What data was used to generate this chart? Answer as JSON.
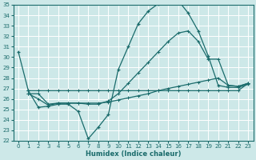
{
  "bg_color": "#cde8e8",
  "grid_color": "#ffffff",
  "line_color": "#1a6b6b",
  "xlabel": "Humidex (Indice chaleur)",
  "xlim": [
    -0.5,
    23.5
  ],
  "ylim": [
    22,
    35
  ],
  "xticks": [
    0,
    1,
    2,
    3,
    4,
    5,
    6,
    7,
    8,
    9,
    10,
    11,
    12,
    13,
    14,
    15,
    16,
    17,
    18,
    19,
    20,
    21,
    22,
    23
  ],
  "yticks": [
    22,
    23,
    24,
    25,
    26,
    27,
    28,
    29,
    30,
    31,
    32,
    33,
    34,
    35
  ],
  "line1_x": [
    0,
    1,
    2,
    3,
    4,
    5,
    6,
    7,
    8,
    9,
    10,
    11,
    12,
    13,
    14,
    15,
    16,
    17,
    18,
    19,
    20,
    21,
    22,
    23
  ],
  "line1_y": [
    30.5,
    26.8,
    25.2,
    25.3,
    25.5,
    25.5,
    24.8,
    22.2,
    23.3,
    24.5,
    28.8,
    31.0,
    33.2,
    34.4,
    35.1,
    35.3,
    35.4,
    34.2,
    32.5,
    30.1,
    27.3,
    27.1,
    27.1,
    27.4
  ],
  "line2_x": [
    1,
    2,
    3,
    4,
    5,
    6,
    7,
    8,
    9,
    10,
    11,
    12,
    13,
    14,
    15,
    16,
    17,
    18,
    19,
    20,
    21,
    22,
    23
  ],
  "line2_y": [
    26.8,
    26.8,
    26.8,
    26.8,
    26.8,
    26.8,
    26.8,
    26.8,
    26.8,
    26.8,
    26.8,
    26.8,
    26.8,
    26.8,
    26.8,
    26.8,
    26.8,
    26.8,
    26.8,
    26.8,
    26.8,
    26.8,
    27.5
  ],
  "line3_x": [
    1,
    2,
    3,
    4,
    5,
    6,
    7,
    8,
    9,
    10,
    11,
    12,
    13,
    14,
    15,
    16,
    17,
    18,
    19,
    20,
    21,
    22,
    23
  ],
  "line3_y": [
    26.5,
    26.5,
    25.5,
    25.6,
    25.6,
    25.6,
    25.6,
    25.6,
    25.7,
    25.9,
    26.1,
    26.3,
    26.5,
    26.8,
    27.0,
    27.2,
    27.4,
    27.6,
    27.8,
    28.0,
    27.3,
    27.2,
    27.5
  ],
  "line4_x": [
    1,
    2,
    3,
    4,
    5,
    6,
    7,
    8,
    9,
    10,
    11,
    12,
    13,
    14,
    15,
    16,
    17,
    18,
    19,
    20,
    21,
    22,
    23
  ],
  "line4_y": [
    26.5,
    26.0,
    25.4,
    25.6,
    25.6,
    25.6,
    25.5,
    25.5,
    25.8,
    26.5,
    27.5,
    28.5,
    29.5,
    30.5,
    31.5,
    32.3,
    32.5,
    31.5,
    29.8,
    29.8,
    27.3,
    27.2,
    27.5
  ]
}
